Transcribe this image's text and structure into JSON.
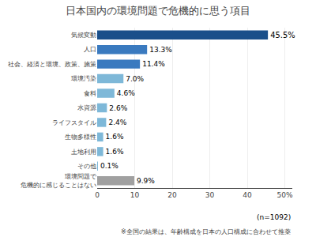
{
  "chart_data": {
    "type": "bar",
    "orientation": "horizontal",
    "title": "日本国内の環境問題で危機的に思う項目",
    "categories": [
      "環境問題で\n危機的に感じることはない",
      "その他",
      "土地利用",
      "生物多様性",
      "ライフスタイル",
      "水資源",
      "食料",
      "環境汚染",
      "社会、経済と環境、政策、施策",
      "人口",
      "気候変動"
    ],
    "values": [
      9.9,
      0.1,
      1.6,
      1.6,
      2.4,
      2.6,
      4.6,
      7.0,
      11.4,
      13.3,
      45.5
    ],
    "value_labels": [
      "9.9%",
      "0.1%",
      "1.6%",
      "1.6%",
      "2.4%",
      "2.6%",
      "4.6%",
      "7.0%",
      "11.4%",
      "13.3%",
      "45.5%"
    ],
    "data_labels": true,
    "colors": [
      "#a0a0a0",
      "#7eb8d8",
      "#7eb8d8",
      "#7eb8d8",
      "#7eb8d8",
      "#7eb8d8",
      "#7eb8d8",
      "#7eb8d8",
      "#3a7abf",
      "#3a7abf",
      "#1a4f8a"
    ],
    "xlim": [
      0,
      52
    ],
    "xticks": [
      0,
      10,
      20,
      30,
      40,
      {
        "value": 50,
        "label": "50%"
      }
    ],
    "grid": true,
    "annotations": [
      "(n=1092)",
      "※全国の結果は、年齢構成を日本の人口構成に合わせて推薬"
    ]
  }
}
